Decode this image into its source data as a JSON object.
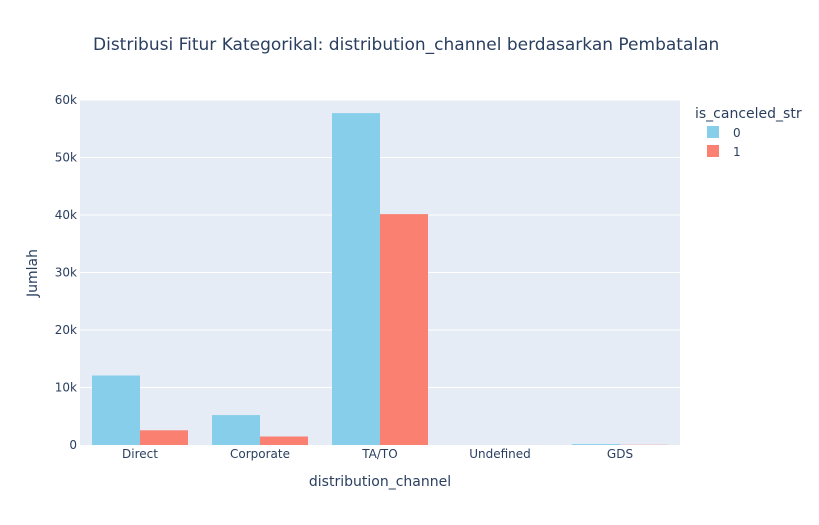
{
  "chart_data": {
    "type": "bar",
    "title": "Distribusi Fitur Kategorikal: distribution_channel berdasarkan Pembatalan",
    "xlabel": "distribution_channel",
    "ylabel": "Jumlah",
    "categories": [
      "Direct",
      "Corporate",
      "TA/TO",
      "Undefined",
      "GDS"
    ],
    "series": [
      {
        "name": "0",
        "color": "#87ceeb",
        "values": [
          12088,
          5203,
          57718,
          1,
          156
        ]
      },
      {
        "name": "1",
        "color": "#fa8072",
        "values": [
          2557,
          1474,
          40152,
          4,
          37
        ]
      }
    ],
    "ylim": [
      0,
      60000
    ],
    "yticks": [
      0,
      10000,
      20000,
      30000,
      40000,
      50000,
      60000
    ],
    "ytick_labels": [
      "0",
      "10k",
      "20k",
      "30k",
      "40k",
      "50k",
      "60k"
    ],
    "grid": true,
    "legend": {
      "title": "is_canceled_str",
      "position": "top-right"
    },
    "colors": {
      "plot_bg": "#e5ecf6",
      "grid": "#ffffff",
      "text": "#2a3f5f"
    }
  }
}
